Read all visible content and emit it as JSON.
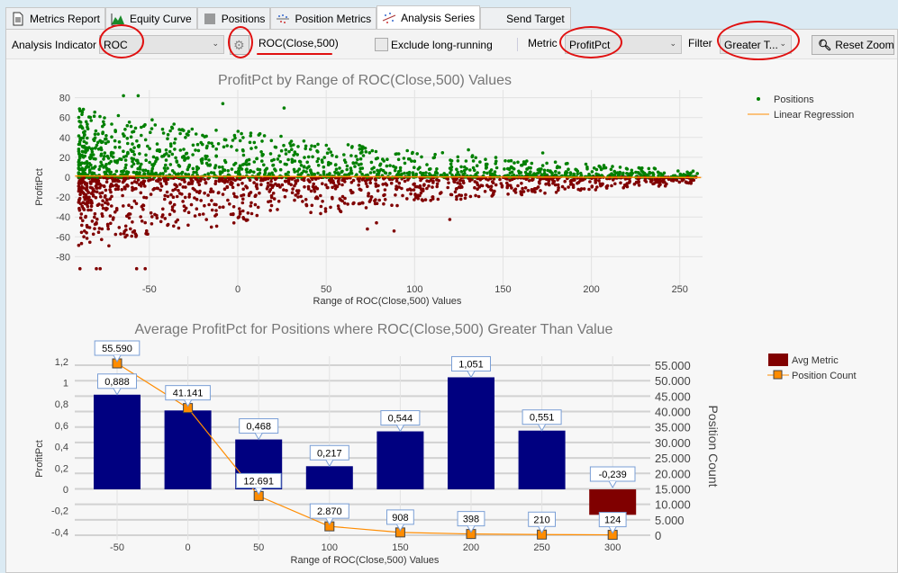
{
  "tabs": [
    {
      "label": "Metrics Report",
      "icon": "document-icon"
    },
    {
      "label": "Equity Curve",
      "icon": "area-chart-icon"
    },
    {
      "label": "Positions",
      "icon": "list-icon"
    },
    {
      "label": "Position Metrics",
      "icon": "scatter-icon"
    },
    {
      "label": "Analysis Series",
      "icon": "scatter-series-icon",
      "active": true
    },
    {
      "label": "Send Target"
    }
  ],
  "toolbar": {
    "indicator_label": "Analysis Indicator",
    "indicator_value": "ROC",
    "indicator_expr": "ROC(Close,500)",
    "exclude_label": "Exclude long-running",
    "exclude_checked": false,
    "metric_label": "Metric",
    "metric_value": "ProfitPct",
    "filter_label": "Filter",
    "filter_value": "Greater T...",
    "reset_zoom": "Reset Zoom"
  },
  "chart_data": [
    {
      "type": "scatter",
      "title": "ProfitPct by Range of ROC(Close,500) Values",
      "xlabel": "Range of ROC(Close,500) Values",
      "ylabel": "ProfitPct",
      "xlim": [
        -92,
        262
      ],
      "ylim": [
        -95,
        85
      ],
      "xticks": [
        "-50",
        "0",
        "50",
        "100",
        "150",
        "200",
        "250"
      ],
      "yticks": [
        "80",
        "60",
        "40",
        "20",
        "0",
        "-20",
        "-40",
        "-60",
        "-80"
      ],
      "legend": [
        "Positions",
        "Linear Regression"
      ],
      "legend_position": "top-right",
      "colors": {
        "positive": "#008000",
        "negative": "#800000",
        "regression": "#ff8c00"
      },
      "regression": {
        "x": [
          -92,
          262
        ],
        "y": [
          1.2,
          -0.3
        ]
      }
    },
    {
      "type": "bar",
      "title": "Average ProfitPct for Positions where ROC(Close,500) Greater Than Value",
      "xlabel": "Range of ROC(Close,500) Values",
      "ylabel": "ProfitPct",
      "y2label": "Position Count",
      "categories": [
        "-50",
        "0",
        "50",
        "100",
        "150",
        "200",
        "250",
        "300"
      ],
      "series": [
        {
          "name": "Avg Metric",
          "values": [
            0.888,
            0.74,
            0.468,
            0.217,
            0.544,
            1.051,
            0.551,
            -0.239
          ],
          "labels": [
            "0,888",
            "",
            "0,468",
            "0,217",
            "0,544",
            "1,051",
            "0,551",
            "-0,239"
          ]
        },
        {
          "name": "Position Count",
          "values": [
            55590,
            41141,
            12691,
            2870,
            908,
            398,
            210,
            124
          ],
          "labels": [
            "55.590",
            "41.141",
            "12.691",
            "2.870",
            "908",
            "398",
            "210",
            "124"
          ]
        }
      ],
      "ylim": [
        -0.45,
        1.25
      ],
      "yticks": [
        "1,2",
        "1",
        "0,8",
        "0,6",
        "0,4",
        "0,2",
        "0",
        "-0,2",
        "-0,4"
      ],
      "y2lim": [
        0,
        57000
      ],
      "y2ticks": [
        "55.000",
        "50.000",
        "45.000",
        "40.000",
        "35.000",
        "30.000",
        "25.000",
        "20.000",
        "15.000",
        "10.000",
        "5.000",
        "0"
      ],
      "legend_position": "top-right",
      "colors": {
        "bar": "#000080",
        "bar_negative": "#800000",
        "line": "#ff8c00"
      }
    }
  ]
}
